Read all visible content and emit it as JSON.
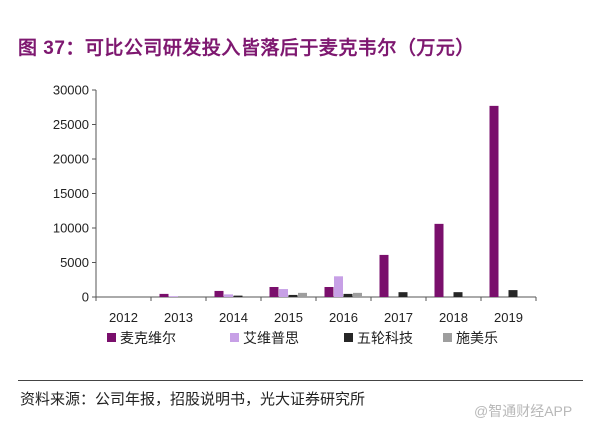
{
  "figure": {
    "source": "资料来源：公司年报，招股说明书，光大证券研究所",
    "watermark": "@智通财经APP"
  },
  "chart_data": {
    "type": "bar",
    "title": "图 37：可比公司研发投入皆落后于麦克韦尔（万元）",
    "xlabel": "",
    "ylabel": "",
    "categories": [
      "2012",
      "2013",
      "2014",
      "2015",
      "2016",
      "2017",
      "2018",
      "2019"
    ],
    "series": [
      {
        "name": "麦克维尔",
        "color": "#7A0F6C",
        "values": [
          null,
          450,
          880,
          1450,
          1450,
          6100,
          10600,
          27700
        ]
      },
      {
        "name": "艾维普思",
        "color": "#C7A0E6",
        "values": [
          null,
          120,
          380,
          1150,
          3000,
          null,
          null,
          null
        ]
      },
      {
        "name": "五轮科技",
        "color": "#262626",
        "values": [
          null,
          null,
          200,
          300,
          450,
          700,
          700,
          1000
        ]
      },
      {
        "name": "施美乐",
        "color": "#9E9E9E",
        "values": [
          null,
          null,
          null,
          600,
          600,
          null,
          null,
          null
        ]
      }
    ],
    "ylim": [
      0,
      30000
    ],
    "yticks": [
      0,
      5000,
      10000,
      15000,
      20000,
      25000,
      30000
    ],
    "grid": false,
    "legend": "bottom"
  }
}
